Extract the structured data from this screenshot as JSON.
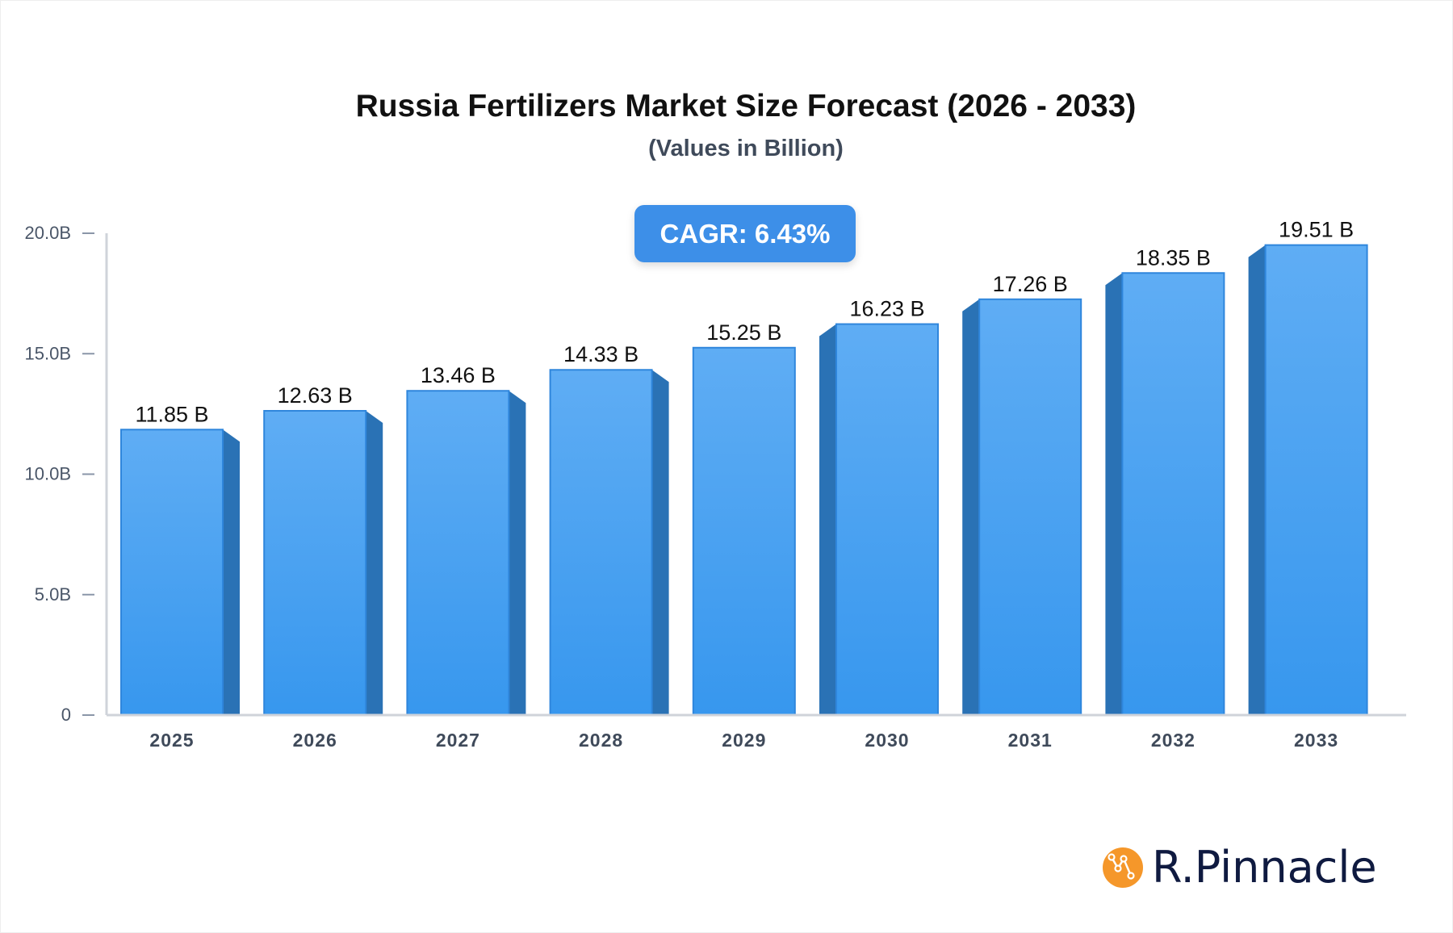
{
  "chart_data": {
    "type": "bar",
    "title": "Russia Fertilizers Market Size Forecast (2026 - 2033)",
    "subtitle": "(Values in Billion)",
    "categories": [
      "2025",
      "2026",
      "2027",
      "2028",
      "2029",
      "2030",
      "2031",
      "2032",
      "2033"
    ],
    "values": [
      11.85,
      12.63,
      13.46,
      14.33,
      15.25,
      16.23,
      17.26,
      18.35,
      19.51
    ],
    "data_labels": [
      "11.85 B",
      "12.63 B",
      "13.46 B",
      "14.33 B",
      "15.25 B",
      "16.23 B",
      "17.26 B",
      "18.35 B",
      "19.51 B"
    ],
    "yticks": [
      0,
      5,
      10,
      15,
      20
    ],
    "ytick_labels": [
      "0",
      "5.0B",
      "10.0B",
      "15.0B",
      "20.0B"
    ],
    "ylim": [
      0,
      20
    ],
    "grid": false,
    "annotation": "CAGR: 6.43%",
    "colors": {
      "bar_top": "#5fadf4",
      "bar_bottom": "#3797ee",
      "bar_side": "#2a72b5",
      "bar_edge": "#2f86dc"
    }
  },
  "brand": {
    "name": "R.Pinnacle",
    "icon_color": "#f5972a"
  }
}
